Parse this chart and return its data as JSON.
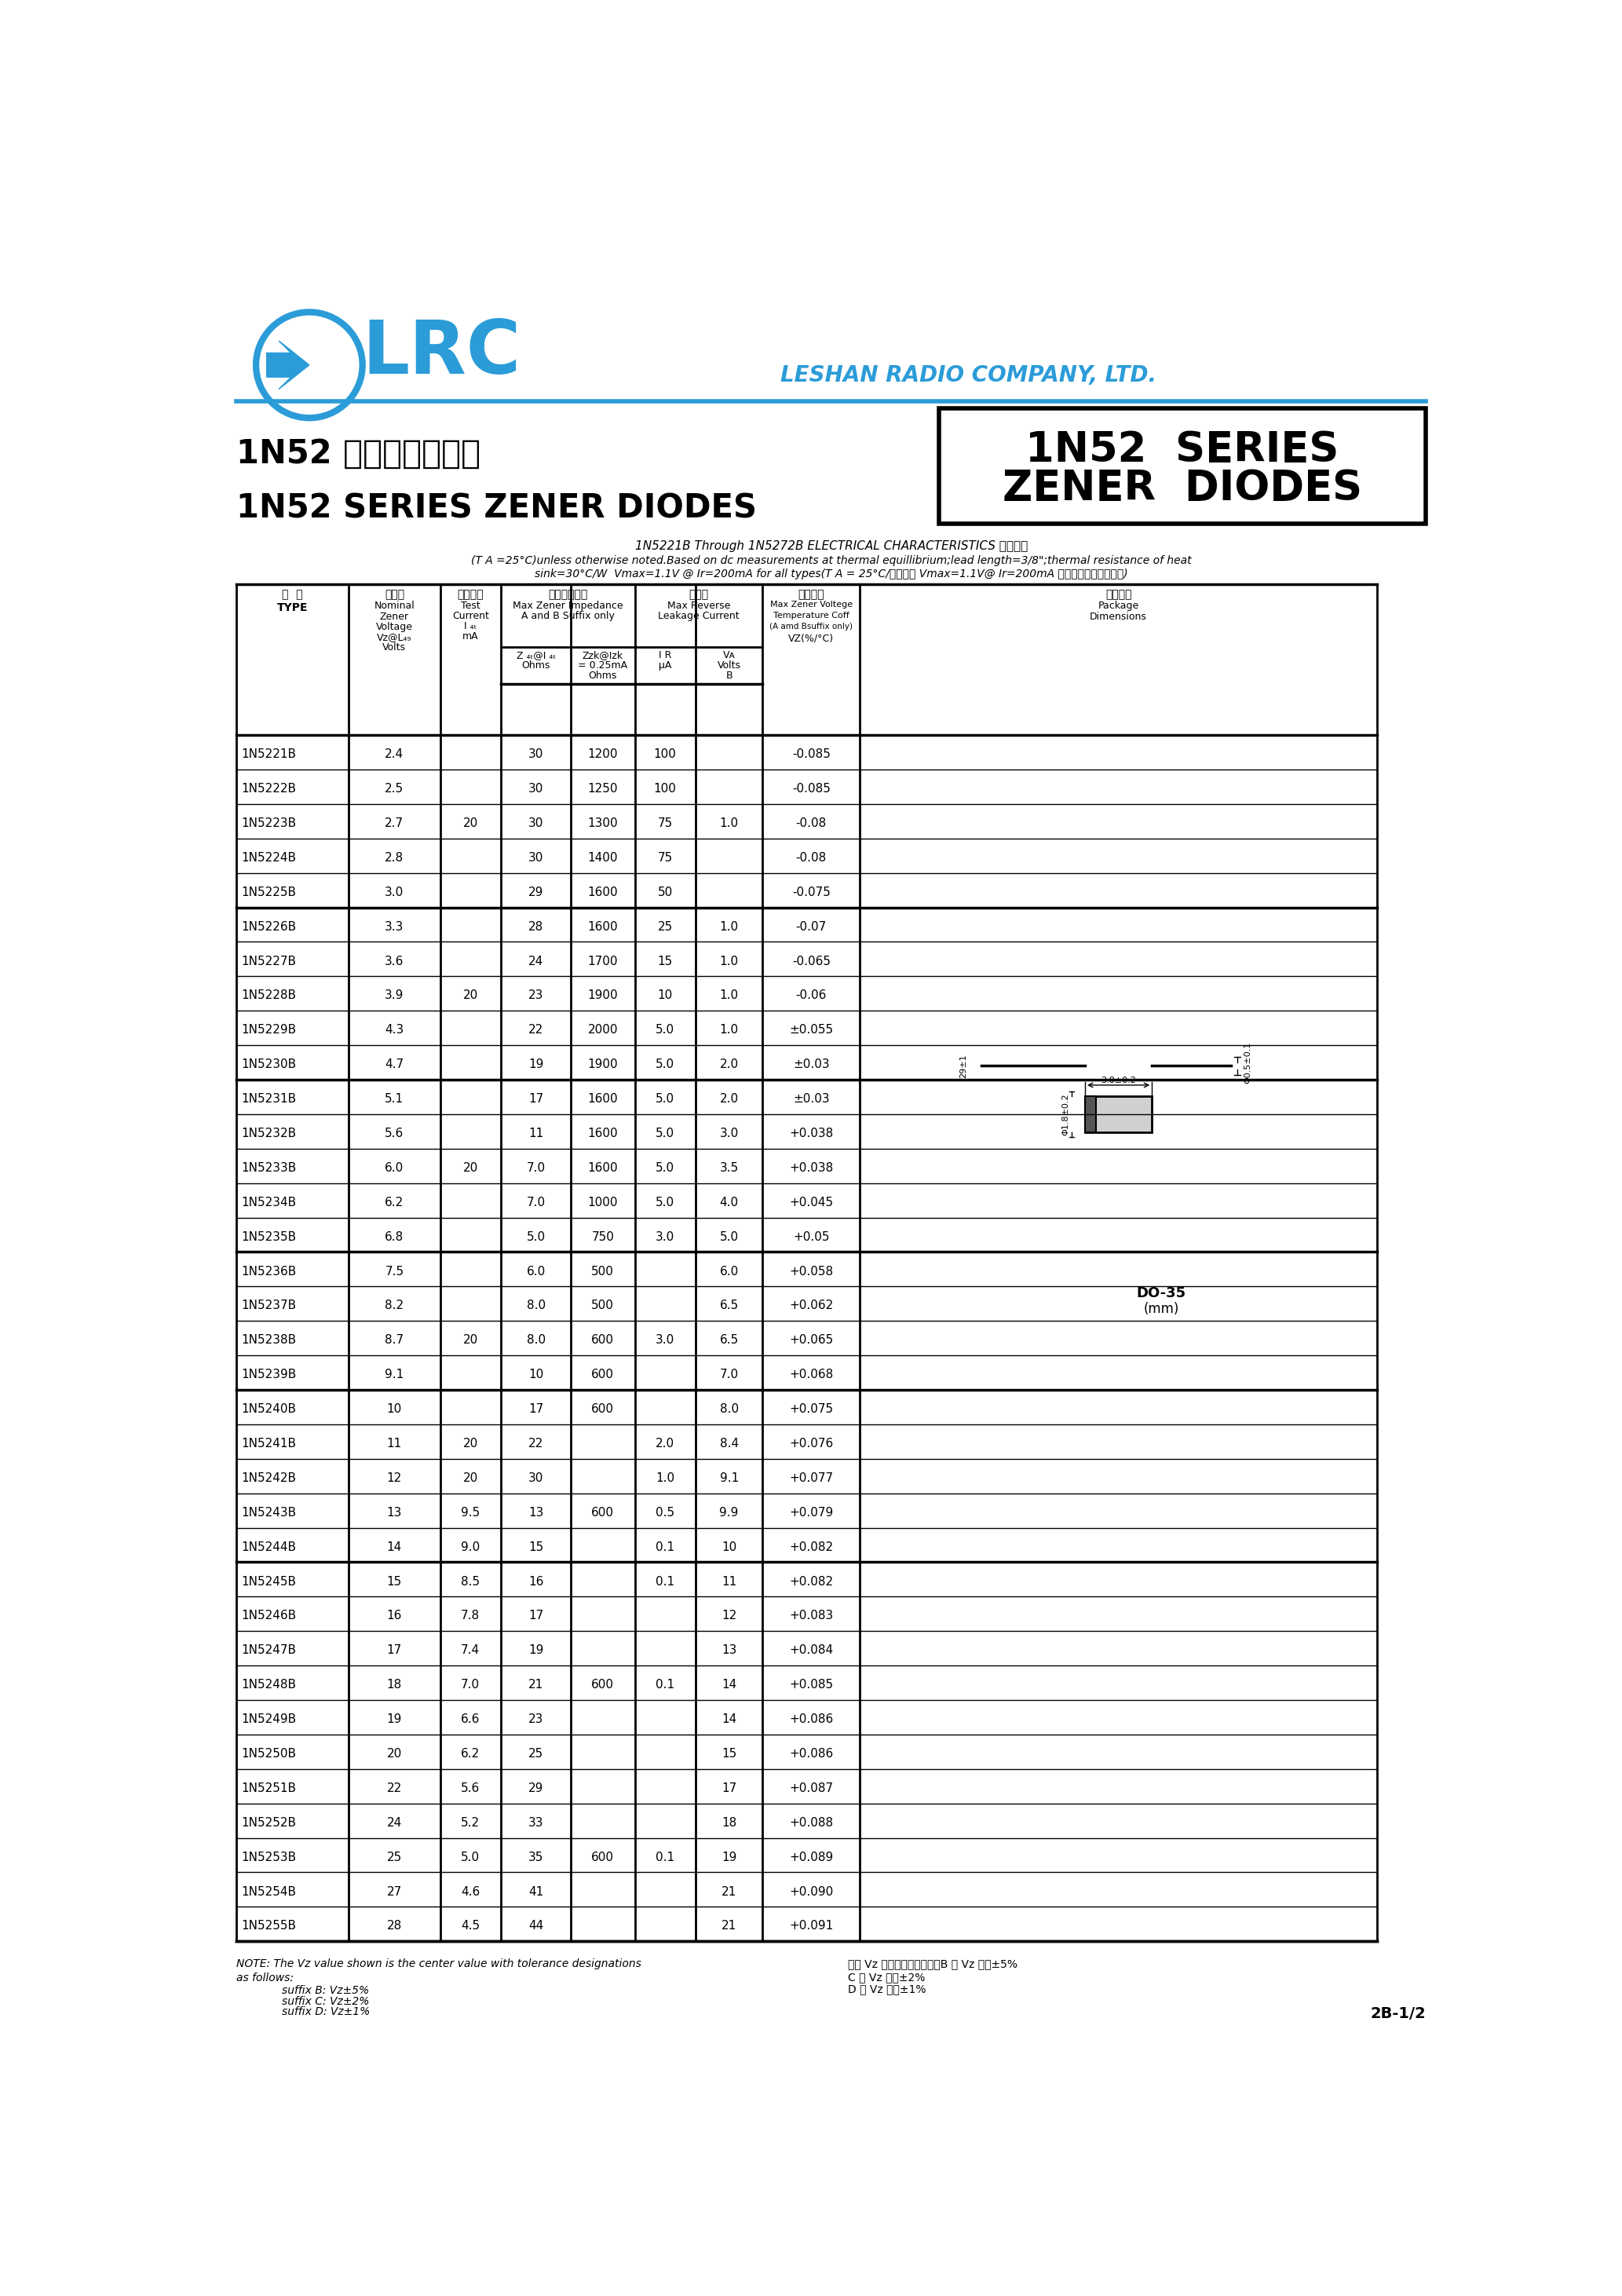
{
  "page_bg": "#ffffff",
  "lrc_color": "#2b9cd8",
  "company_name": "LESHAN RADIO COMPANY, LTD.",
  "subtitle_chinese": "1N52 系列稳压二极管",
  "subtitle_english": "1N52 SERIES ZENER DIODES",
  "note1": "1N5221B Through 1N5272B ELECTRICAL CHARACTERISTICS 电性参数",
  "note2": "(T A =25°C)unless otherwise noted.Based on dc measurements at thermal equillibrium;lead length=3/8\";thermal resistance of heat",
  "note3": "sink=30°C/W  Vmax=1.1V @ Ir=200mA for all types(T A = 25°C/所有型号 Vmax=1.1V@ Ir=200mA ，其它特别说明除外。)",
  "table_data": [
    [
      "1N5221B",
      "2.4",
      "",
      "30",
      "1200",
      "100",
      "",
      "-0.085"
    ],
    [
      "1N5222B",
      "2.5",
      "",
      "30",
      "1250",
      "100",
      "",
      "-0.085"
    ],
    [
      "1N5223B",
      "2.7",
      "20",
      "30",
      "1300",
      "75",
      "1.0",
      "-0.08"
    ],
    [
      "1N5224B",
      "2.8",
      "",
      "30",
      "1400",
      "75",
      "",
      "-0.08"
    ],
    [
      "1N5225B",
      "3.0",
      "",
      "29",
      "1600",
      "50",
      "",
      "-0.075"
    ],
    [
      "1N5226B",
      "3.3",
      "",
      "28",
      "1600",
      "25",
      "1.0",
      "-0.07"
    ],
    [
      "1N5227B",
      "3.6",
      "",
      "24",
      "1700",
      "15",
      "1.0",
      "-0.065"
    ],
    [
      "1N5228B",
      "3.9",
      "20",
      "23",
      "1900",
      "10",
      "1.0",
      "-0.06"
    ],
    [
      "1N5229B",
      "4.3",
      "",
      "22",
      "2000",
      "5.0",
      "1.0",
      "±0.055"
    ],
    [
      "1N5230B",
      "4.7",
      "",
      "19",
      "1900",
      "5.0",
      "2.0",
      "±0.03"
    ],
    [
      "1N5231B",
      "5.1",
      "",
      "17",
      "1600",
      "5.0",
      "2.0",
      "±0.03"
    ],
    [
      "1N5232B",
      "5.6",
      "",
      "11",
      "1600",
      "5.0",
      "3.0",
      "+0.038"
    ],
    [
      "1N5233B",
      "6.0",
      "20",
      "7.0",
      "1600",
      "5.0",
      "3.5",
      "+0.038"
    ],
    [
      "1N5234B",
      "6.2",
      "",
      "7.0",
      "1000",
      "5.0",
      "4.0",
      "+0.045"
    ],
    [
      "1N5235B",
      "6.8",
      "",
      "5.0",
      "750",
      "3.0",
      "5.0",
      "+0.05"
    ],
    [
      "1N5236B",
      "7.5",
      "",
      "6.0",
      "500",
      "",
      "6.0",
      "+0.058"
    ],
    [
      "1N5237B",
      "8.2",
      "",
      "8.0",
      "500",
      "",
      "6.5",
      "+0.062"
    ],
    [
      "1N5238B",
      "8.7",
      "20",
      "8.0",
      "600",
      "3.0",
      "6.5",
      "+0.065"
    ],
    [
      "1N5239B",
      "9.1",
      "",
      "10",
      "600",
      "",
      "7.0",
      "+0.068"
    ],
    [
      "1N5240B",
      "10",
      "",
      "17",
      "600",
      "",
      "8.0",
      "+0.075"
    ],
    [
      "1N5241B",
      "11",
      "20",
      "22",
      "",
      "2.0",
      "8.4",
      "+0.076"
    ],
    [
      "1N5242B",
      "12",
      "20",
      "30",
      "",
      "1.0",
      "9.1",
      "+0.077"
    ],
    [
      "1N5243B",
      "13",
      "9.5",
      "13",
      "600",
      "0.5",
      "9.9",
      "+0.079"
    ],
    [
      "1N5244B",
      "14",
      "9.0",
      "15",
      "",
      "0.1",
      "10",
      "+0.082"
    ],
    [
      "1N5245B",
      "15",
      "8.5",
      "16",
      "",
      "0.1",
      "11",
      "+0.082"
    ],
    [
      "1N5246B",
      "16",
      "7.8",
      "17",
      "",
      "",
      "12",
      "+0.083"
    ],
    [
      "1N5247B",
      "17",
      "7.4",
      "19",
      "",
      "",
      "13",
      "+0.084"
    ],
    [
      "1N5248B",
      "18",
      "7.0",
      "21",
      "600",
      "0.1",
      "14",
      "+0.085"
    ],
    [
      "1N5249B",
      "19",
      "6.6",
      "23",
      "",
      "",
      "14",
      "+0.086"
    ],
    [
      "1N5250B",
      "20",
      "6.2",
      "25",
      "",
      "",
      "15",
      "+0.086"
    ],
    [
      "1N5251B",
      "22",
      "5.6",
      "29",
      "",
      "",
      "17",
      "+0.087"
    ],
    [
      "1N5252B",
      "24",
      "5.2",
      "33",
      "",
      "",
      "18",
      "+0.088"
    ],
    [
      "1N5253B",
      "25",
      "5.0",
      "35",
      "600",
      "0.1",
      "19",
      "+0.089"
    ],
    [
      "1N5254B",
      "27",
      "4.6",
      "41",
      "",
      "",
      "21",
      "+0.090"
    ],
    [
      "1N5255B",
      "28",
      "4.5",
      "44",
      "",
      "",
      "21",
      "+0.091"
    ]
  ],
  "group_borders": [
    5,
    10,
    15,
    19,
    24,
    35
  ],
  "note_bottom1": "NOTE: The Vz value shown is the center value with tolerance designations",
  "note_bottom2": "as follows:",
  "note_bottom3": "suffix B: Vz±5%",
  "note_bottom4": "suffix C: Vz±2%",
  "note_bottom5": "suffix D: Vz±1%",
  "note_bottom_right1": "注： Vz 为稳压小心値，其中B 型 Vz 容差±5%",
  "note_bottom_right2": "C 型 Vz 容差±2%",
  "note_bottom_right3": "D 型 Vz 容差±1%",
  "page_num": "2B-1/2"
}
